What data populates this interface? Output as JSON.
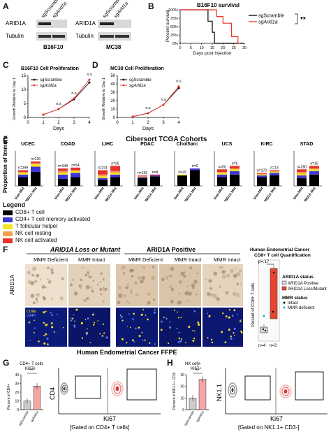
{
  "panels": {
    "A": {
      "letter": "A",
      "blot1": {
        "lane1": "sgScramble",
        "lane2": "sgArid1a",
        "row1": "ARID1A",
        "row2": "Tubulin",
        "cell": "B16F10"
      },
      "blot2": {
        "lane1": "sgScramble",
        "lane2": "sgArid1a",
        "row1": "ARID1A",
        "row2": "Tubulin",
        "cell": "MC38"
      }
    },
    "B": {
      "letter": "B"
    },
    "C": {
      "letter": "C"
    },
    "D": {
      "letter": "D"
    },
    "E": {
      "letter": "E",
      "title": "Cibersort TCGA Cohorts",
      "ylabel": "Proportion of Immune",
      "xlabels": [
        "Non-Mut",
        "ARID1A Mut"
      ]
    },
    "F": {
      "letter": "F",
      "loss_header": "ARID1A Loss or Mutant",
      "pos_header": "ARID1A Positive",
      "mmr": [
        "MMR Deficient",
        "MMR Intact",
        "MMR Deficient",
        "MMR Intact",
        "MMR Intact"
      ],
      "row1": "ARID1A",
      "row2_a": "CD8a",
      "row2_b": "DAPI",
      "footer": "Human Endometrial Cancer FFPE",
      "quant_title1": "Human Endometrial Cancer",
      "quant_title2": "CD8+ T cell Quantification",
      "quant_ylabel": "Percent of CD8+ T cells",
      "pvalue": "p=.17",
      "n_left": "n=4",
      "n_right": "n=3",
      "status_title": "ARID1A status",
      "status_pos": "ARID1A Positive",
      "status_loss": "ARID1A Loss/Mutant",
      "mmr_title": "MMR status",
      "mmr_intact": "Intact",
      "mmr_def": "MMR deficient"
    },
    "G": {
      "letter": "G",
      "title1": "CD4+ T cells",
      "title2": "Ki67+",
      "ylabel": "Percent of CD4+",
      "stars": "**",
      "xlabels": [
        "sgScramble",
        "sgArid1a"
      ],
      "flow_y": "CD4",
      "flow_x": "Ki67",
      "gate": "[Gated on CD4+ T cells]"
    },
    "H": {
      "letter": "H",
      "title1": "NK cells",
      "title2": "Ki67+",
      "ylabel": "Percent of NK1.1+ CD3-",
      "stars": "**",
      "xlabels": [
        "sgScramble",
        "sgArid1a"
      ],
      "flow_y": "NK1.1",
      "flow_x": "Ki67",
      "gate": "[Gated on NK1.1+ CD3-]"
    }
  },
  "legend": {
    "title": "Legend",
    "items": [
      {
        "label": "CD8+ T cell",
        "color": "#000000"
      },
      {
        "label": "CD4+ T cell memory activated",
        "color": "#3f37d4"
      },
      {
        "label": "T follicular helper",
        "color": "#f4e31f"
      },
      {
        "label": "NK cell resting",
        "color": "#f5a14b"
      },
      {
        "label": "NK cell activated",
        "color": "#e8332e"
      }
    ]
  },
  "chart_data": [
    {
      "type": "line",
      "title": "B16F10 survival",
      "xlabel": "Days post Injection",
      "ylabel": "Percent survival",
      "ylim": [
        0,
        100
      ],
      "xlim": [
        0,
        30
      ],
      "yticks": [
        "0%",
        "25%",
        "50%",
        "75%",
        "100%"
      ],
      "xticks": [
        0,
        5,
        10,
        15,
        20,
        25,
        30
      ],
      "series": [
        {
          "name": "sgScramble",
          "color": "#000000",
          "x": [
            0,
            13,
            13,
            15,
            15,
            16,
            16,
            17,
            17,
            30
          ],
          "values": [
            100,
            100,
            66,
            66,
            33,
            33,
            0,
            0,
            0,
            0
          ]
        },
        {
          "name": "sgArid1a",
          "color": "#e8332e",
          "x": [
            0,
            17,
            17,
            20,
            20,
            24,
            24,
            27,
            27,
            28
          ],
          "values": [
            100,
            100,
            80,
            80,
            60,
            60,
            20,
            20,
            0,
            0
          ]
        }
      ],
      "significance": "**",
      "grid": false
    },
    {
      "type": "line",
      "title": "B16F10 Cell Proliferation",
      "xlabel": "Days",
      "ylabel": "Growth Relative to Day 1",
      "ylim": [
        0,
        15
      ],
      "yticks": [
        0,
        5,
        10,
        15
      ],
      "xticks": [
        0,
        1,
        2,
        3,
        4
      ],
      "categories": [
        1,
        2,
        3,
        4
      ],
      "series": [
        {
          "name": "sgScramble",
          "color": "#000000",
          "values": [
            1,
            3,
            6.5,
            12.5
          ]
        },
        {
          "name": "sgArid1a",
          "color": "#e8332e",
          "values": [
            1,
            3,
            6.8,
            13.5
          ]
        }
      ],
      "annotations": [
        "n.s",
        "n.s",
        "n.s"
      ]
    },
    {
      "type": "line",
      "title": "MC38 Cell Proliferation",
      "xlabel": "Days",
      "ylabel": "Growth Relative to Day 1",
      "ylim": [
        0,
        50
      ],
      "yticks": [
        0,
        10,
        20,
        30,
        40,
        50
      ],
      "xticks": [
        0,
        1,
        2,
        3,
        4
      ],
      "categories": [
        1,
        2,
        3,
        4
      ],
      "series": [
        {
          "name": "sgScramble",
          "color": "#000000",
          "values": [
            1,
            5,
            15,
            35
          ]
        },
        {
          "name": "sgArid1a",
          "color": "#e8332e",
          "values": [
            1,
            5,
            15,
            37
          ]
        }
      ],
      "annotations": [
        "n.s",
        "n.s",
        "n.s"
      ]
    },
    {
      "type": "bar",
      "title": "Cibersort TCGA Cohorts",
      "stacked": true,
      "categories": [
        "UCEC",
        "COAD",
        "LIHC",
        "PDAC",
        "CholSarc",
        "UCS",
        "KIRC",
        "STAD"
      ],
      "groups": [
        "Non-Mut",
        "ARID1A Mut"
      ],
      "n_labels": [
        [
          "n=299",
          "n=226"
        ],
        [
          "n=348",
          "n=54"
        ],
        [
          "n=331",
          "n=26"
        ],
        [
          "n=159",
          "n=8"
        ],
        [
          "n=29",
          "n=6"
        ],
        [
          "n=50",
          "n=6"
        ],
        [
          "n=270",
          "n=13"
        ],
        [
          "n=280",
          "n=16"
        ]
      ],
      "ylim": [
        0,
        0.4
      ],
      "series": [
        {
          "name": "CD8+ T cell",
          "values": [
            [
              0.1,
              0.16
            ],
            [
              0.08,
              0.1
            ],
            [
              0.07,
              0.1
            ],
            [
              0.09,
              0.11
            ],
            [
              0.12,
              0.18
            ],
            [
              0.1,
              0.13
            ],
            [
              0.1,
              0.12
            ],
            [
              0.09,
              0.13
            ]
          ]
        },
        {
          "name": "CD4+ T cell memory activated",
          "values": [
            [
              0.03,
              0.06
            ],
            [
              0.05,
              0.05
            ],
            [
              0.02,
              0.03
            ],
            [
              0.01,
              0.01
            ],
            [
              0.0,
              0.02
            ],
            [
              0.03,
              0.04
            ],
            [
              0.02,
              0.03
            ],
            [
              0.03,
              0.04
            ]
          ]
        },
        {
          "name": "T follicular helper",
          "values": [
            [
              0.02,
              0.03
            ],
            [
              0.02,
              0.02
            ],
            [
              0.02,
              0.02
            ],
            [
              0.0,
              0.0
            ],
            [
              0.01,
              0.0
            ],
            [
              0.02,
              0.02
            ],
            [
              0.01,
              0.01
            ],
            [
              0.02,
              0.02
            ]
          ]
        },
        {
          "name": "NK cell resting",
          "values": [
            [
              0.01,
              0.01
            ],
            [
              0.02,
              0.01
            ],
            [
              0.02,
              0.02
            ],
            [
              0.01,
              0.0
            ],
            [
              0.0,
              0.0
            ],
            [
              0.01,
              0.01
            ],
            [
              0.01,
              0.01
            ],
            [
              0.02,
              0.01
            ]
          ]
        },
        {
          "name": "NK cell activated",
          "values": [
            [
              0.02,
              0.02
            ],
            [
              0.03,
              0.03
            ],
            [
              0.05,
              0.06
            ],
            [
              0.01,
              0.01
            ],
            [
              0.0,
              0.0
            ],
            [
              0.03,
              0.03
            ],
            [
              0.01,
              0.01
            ],
            [
              0.03,
              0.03
            ]
          ]
        }
      ]
    },
    {
      "type": "bar",
      "title": "CD4+ T cells Ki67+",
      "categories": [
        "sgScramble",
        "sgArid1a"
      ],
      "values": [
        10,
        27
      ],
      "ylabel": "Percent of CD4+",
      "ylim": [
        0,
        40
      ],
      "yticks": [
        0,
        10,
        20,
        30,
        40
      ],
      "colors": [
        "#cccccc",
        "#f4a6a6"
      ],
      "significance": "**"
    },
    {
      "type": "bar",
      "title": "NK cells Ki67+",
      "categories": [
        "sgScramble",
        "sgArid1a"
      ],
      "values": [
        10,
        26
      ],
      "ylabel": "Percent of NK1.1+ CD3-",
      "ylim": [
        0,
        30
      ],
      "yticks": [
        0,
        10,
        20,
        30
      ],
      "colors": [
        "#cccccc",
        "#f4a6a6"
      ],
      "significance": "**"
    }
  ]
}
